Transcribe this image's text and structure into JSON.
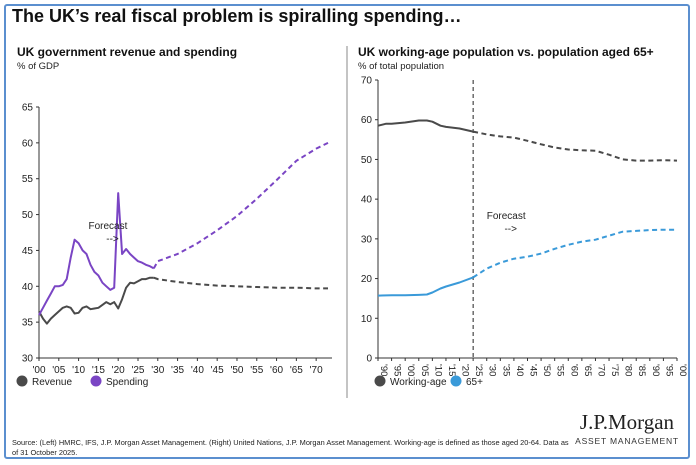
{
  "page_title": "The UK’s real fiscal problem is spiralling spending…",
  "source_note": "Source: (Left) HMRC, IFS, J.P. Morgan Asset Management. (Right) United Nations, J.P. Morgan Asset Management. Working-age is defined as those aged 20-64. Data as of 31 October 2025.",
  "brand": {
    "name": "J.P.Morgan",
    "sub": "ASSET MANAGEMENT"
  },
  "colors": {
    "frame": "#5b8fcf",
    "revenue": "#4a4a4a",
    "spending": "#7a45c4",
    "working_age": "#4a4a4a",
    "aged_65": "#3a9ad9",
    "axis": "#333333",
    "divider": "#888888"
  },
  "chart_data": [
    {
      "type": "line",
      "title": "UK government revenue and spending",
      "subtitle": "% of GDP",
      "ylim": [
        30,
        65
      ],
      "yticks": [
        30,
        35,
        40,
        45,
        50,
        55,
        60,
        65
      ],
      "xlim": [
        2000,
        2074
      ],
      "xticks": [
        2000,
        2005,
        2010,
        2015,
        2020,
        2025,
        2030,
        2035,
        2040,
        2045,
        2050,
        2055,
        2060,
        2065,
        2070
      ],
      "xtick_labels": [
        "'00",
        "'05",
        "'10",
        "'15",
        "'20",
        "'25",
        "'30",
        "'35",
        "'40",
        "'45",
        "'50",
        "'55",
        "'60",
        "'65",
        "'70"
      ],
      "grid": false,
      "legend_position": "bottom-left",
      "forecast_start": 2029,
      "annotation": {
        "text": "Forecast",
        "arrow": "-->",
        "x": 2012.5,
        "y": 48
      },
      "series": [
        {
          "name": "Revenue",
          "color": "#4a4a4a",
          "x": [
            2000,
            2001,
            2002,
            2003,
            2004,
            2005,
            2006,
            2007,
            2008,
            2009,
            2010,
            2011,
            2012,
            2013,
            2014,
            2015,
            2016,
            2017,
            2018,
            2019,
            2020,
            2021,
            2022,
            2023,
            2024,
            2025,
            2026,
            2027,
            2028,
            2029,
            2030,
            2035,
            2040,
            2045,
            2050,
            2055,
            2060,
            2065,
            2070,
            2073
          ],
          "y": [
            36.5,
            35.5,
            34.8,
            35.5,
            36.0,
            36.5,
            37.0,
            37.2,
            37.0,
            36.2,
            36.3,
            37.0,
            37.2,
            36.8,
            36.9,
            37.0,
            37.4,
            37.8,
            37.5,
            37.8,
            36.9,
            38.2,
            39.8,
            40.5,
            40.4,
            40.7,
            41.0,
            41.0,
            41.2,
            41.2,
            41.0,
            40.6,
            40.3,
            40.1,
            40.0,
            39.9,
            39.8,
            39.8,
            39.7,
            39.7
          ]
        },
        {
          "name": "Spending",
          "color": "#7a45c4",
          "x": [
            2000,
            2001,
            2002,
            2003,
            2004,
            2005,
            2006,
            2007,
            2008,
            2009,
            2010,
            2011,
            2012,
            2013,
            2014,
            2015,
            2016,
            2017,
            2018,
            2019,
            2020,
            2021,
            2022,
            2023,
            2024,
            2025,
            2026,
            2027,
            2028,
            2029,
            2030,
            2035,
            2040,
            2045,
            2050,
            2055,
            2060,
            2065,
            2070,
            2073
          ],
          "y": [
            36.0,
            37.0,
            38.0,
            39.0,
            40.0,
            40.0,
            40.2,
            41.0,
            44.0,
            46.5,
            46.0,
            45.0,
            44.5,
            43.0,
            42.0,
            41.5,
            40.5,
            40.0,
            39.5,
            39.8,
            53.0,
            44.5,
            45.2,
            44.5,
            44.0,
            43.5,
            43.3,
            43.0,
            42.8,
            42.5,
            43.5,
            44.5,
            46.0,
            47.8,
            49.8,
            52.2,
            54.8,
            57.5,
            59.2,
            60.0
          ]
        }
      ]
    },
    {
      "type": "line",
      "title": "UK working-age population vs. population aged 65+",
      "subtitle": "% of total population",
      "ylim": [
        0,
        70
      ],
      "yticks": [
        0,
        10,
        20,
        30,
        40,
        50,
        60,
        70
      ],
      "xlim": [
        1990,
        2100
      ],
      "xticks": [
        1990,
        1995,
        2000,
        2005,
        2010,
        2015,
        2020,
        2025,
        2030,
        2035,
        2040,
        2045,
        2050,
        2055,
        2060,
        2065,
        2070,
        2075,
        2080,
        2085,
        2090,
        2095,
        2100
      ],
      "xtick_labels": [
        "'90",
        "'95",
        "'00",
        "'05",
        "'10",
        "'15",
        "'20",
        "'25",
        "'30",
        "'35",
        "'40",
        "'45",
        "'50",
        "'55",
        "'60",
        "'65",
        "'70",
        "'75",
        "'80",
        "'85",
        "'90",
        "'95",
        "'00"
      ],
      "grid": false,
      "legend_position": "bottom-left",
      "forecast_start": 2025,
      "annotation": {
        "text": "Forecast",
        "arrow": "-->",
        "x": 2030,
        "y": 35
      },
      "series": [
        {
          "name": "Working-age",
          "color": "#4a4a4a",
          "x": [
            1990,
            1993,
            1995,
            2000,
            2005,
            2008,
            2010,
            2013,
            2015,
            2020,
            2025,
            2030,
            2035,
            2040,
            2045,
            2050,
            2055,
            2060,
            2065,
            2070,
            2075,
            2080,
            2085,
            2090,
            2095,
            2100
          ],
          "y": [
            58.5,
            59.0,
            59.0,
            59.3,
            59.8,
            59.8,
            59.5,
            58.5,
            58.2,
            57.8,
            57.0,
            56.3,
            55.8,
            55.5,
            54.7,
            53.8,
            53.0,
            52.5,
            52.3,
            52.2,
            51.2,
            50.0,
            49.7,
            49.7,
            49.8,
            49.7
          ]
        },
        {
          "name": "65+",
          "color": "#3a9ad9",
          "x": [
            1990,
            1995,
            2000,
            2005,
            2008,
            2010,
            2013,
            2015,
            2020,
            2025,
            2030,
            2035,
            2040,
            2045,
            2050,
            2055,
            2060,
            2065,
            2070,
            2075,
            2080,
            2085,
            2090,
            2095,
            2100
          ],
          "y": [
            15.7,
            15.8,
            15.8,
            15.9,
            16.0,
            16.5,
            17.5,
            18.0,
            19.0,
            20.3,
            22.5,
            24.0,
            25.0,
            25.5,
            26.3,
            27.5,
            28.5,
            29.3,
            29.8,
            30.8,
            31.8,
            32.0,
            32.2,
            32.3,
            32.3
          ]
        }
      ]
    }
  ]
}
